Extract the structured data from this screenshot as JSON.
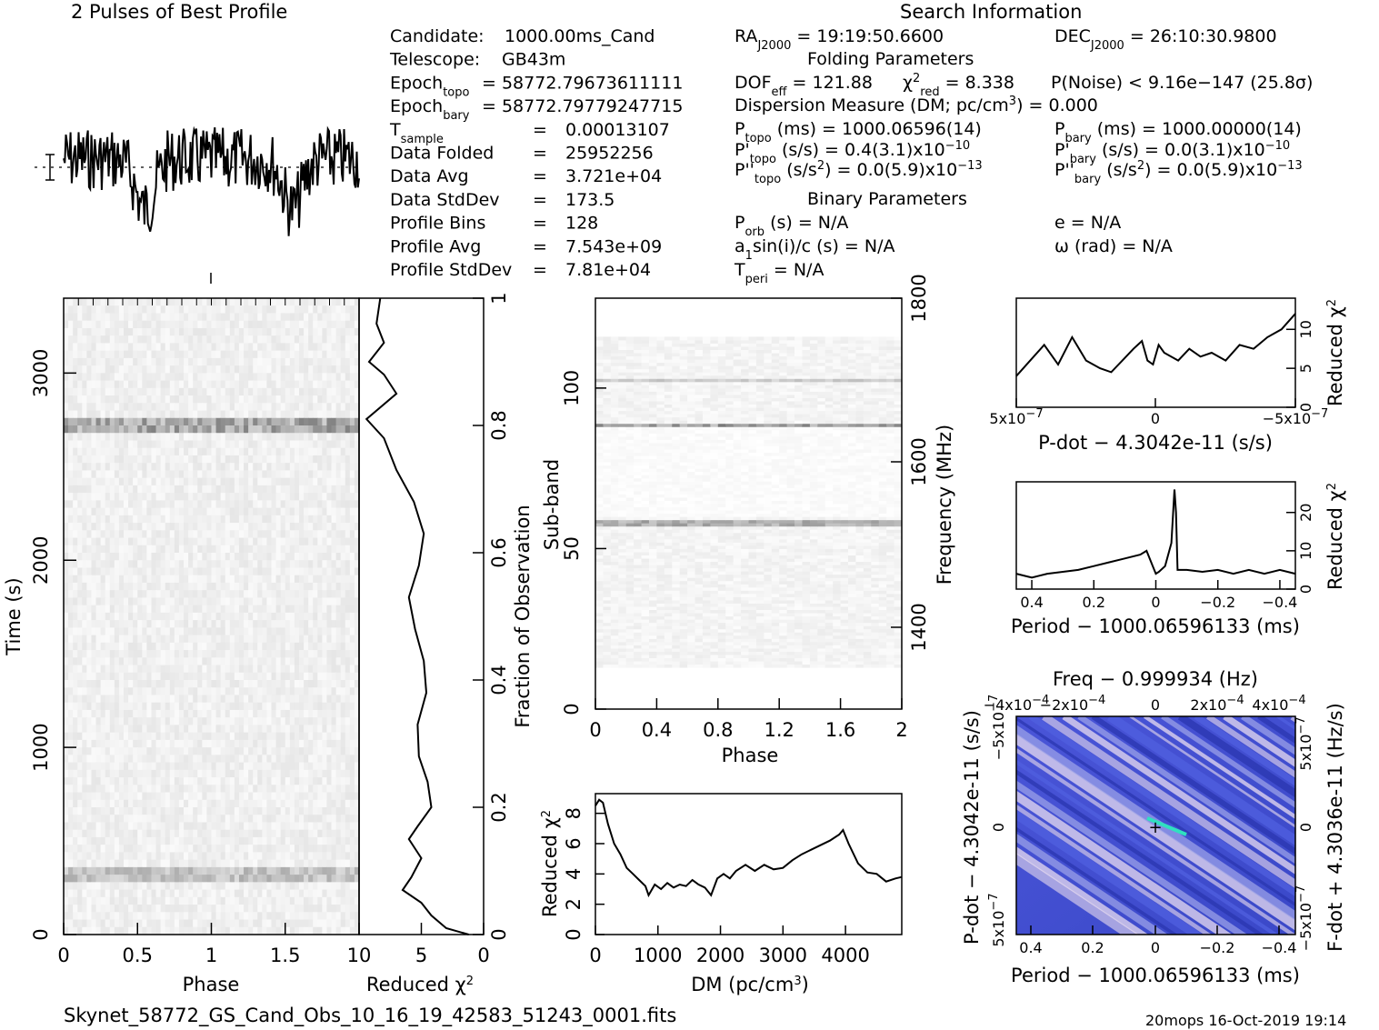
{
  "header": {
    "profile_title": "2 Pulses of Best Profile",
    "search_title": "Search Information",
    "folding_title": "Folding Parameters",
    "binary_title": "Binary Parameters"
  },
  "candidate_info": [
    {
      "label": "Candidate:",
      "value": "1000.00ms_Cand"
    },
    {
      "label": "Telescope:",
      "value": "GB43m"
    },
    {
      "label": "Epoch",
      "sub": "topo",
      "value": "= 58772.79673611111"
    },
    {
      "label": "Epoch",
      "sub": "bary",
      "value": "= 58772.79779247715"
    },
    {
      "label": "T",
      "sub": "sample",
      "value": "0.00013107"
    },
    {
      "label": "Data Folded",
      "value": "25952256"
    },
    {
      "label": "Data Avg",
      "value": "3.721e+04"
    },
    {
      "label": "Data StdDev",
      "value": "173.5"
    },
    {
      "label": "Profile Bins",
      "value": "128"
    },
    {
      "label": "Profile Avg",
      "value": "7.543e+09"
    },
    {
      "label": "Profile StdDev",
      "value": "7.81e+04"
    }
  ],
  "search_info": {
    "ra": "= 19:19:50.6600",
    "ra_label": "RA",
    "ra_sub": "J2000",
    "dec": "= 26:10:30.9800",
    "dec_label": "DEC",
    "dec_sub": "J2000",
    "dof_label": "DOF",
    "dof_sub": "eff",
    "dof": "= 121.88",
    "chi_label": "χ",
    "chi_sup": "2",
    "chi_sub": "red",
    "chi": "= 8.338",
    "pnoise": "P(Noise) < 9.16e−147   (25.8σ)",
    "dm_text": "Dispersion Measure (DM; pc/cm",
    "dm_sup": "3",
    "dm_value": ") = 0.000",
    "ptopo_label": "P",
    "ptopo_sub": "topo",
    "ptopo": "(ms) =  1000.06596(14)",
    "pbary_label": "P",
    "pbary_sub": "bary",
    "pbary": "(ms) =  1000.00000(14)",
    "pdtopo_label": "P'",
    "pdtopo_sub": "topo",
    "pdtopo": "(s/s) =  0.4(3.1)x10",
    "pdtopo_exp": "−10",
    "pdbary_label": "P'",
    "pdbary_sub": "bary",
    "pdbary": "(s/s) = 0.0(3.1)x10",
    "pdbary_exp": "−10",
    "pddtopo_label": "P''",
    "pddtopo_sub": "topo",
    "pddtopo": "(s/s",
    "pddtopo_sup": "2",
    "pddtopo_tail": ") = 0.0(5.9)x10",
    "pddtopo_exp": "−13",
    "pddbary_label": "P''",
    "pddbary_sub": "bary",
    "pddbary": "(s/s",
    "pddbary_sup": "2",
    "pddbary_tail": ") = 0.0(5.9)x10",
    "pddbary_exp": "−13",
    "porb_label": "P",
    "porb_sub": "orb",
    "porb": "(s) = N/A",
    "e": "e = N/A",
    "a1": "a",
    "a1_sub": "1",
    "a1_tail": "sin(i)/c (s) = N/A",
    "omega": "ω (rad) = N/A",
    "tperi_label": "T",
    "tperi_sub": "peri",
    "tperi": "= N/A"
  },
  "footer": {
    "filename": "Skynet_58772_GS_Cand_Obs_10_16_19_42583_51243_0001.fits",
    "stamp": "20mops 16-Oct-2019 19:14"
  },
  "chart_data": [
    {
      "type": "line",
      "id": "profile",
      "title": "2 Pulses of Best Profile",
      "xlim": [
        0,
        2
      ],
      "note": "two repeated pulse profiles, noisy"
    },
    {
      "type": "heatmap",
      "id": "time-phase",
      "xlabel": "Phase",
      "ylabel": "Time (s)",
      "xlim": [
        0,
        2
      ],
      "ylim": [
        0,
        3400
      ],
      "xticks": [
        "0",
        "0.5",
        "1",
        "1.5"
      ],
      "yticks": [
        "0",
        "1000",
        "2000",
        "3000"
      ],
      "bright_rows_time": [
        2740,
        350
      ]
    },
    {
      "type": "line",
      "id": "chi-vs-time",
      "xlabel": "Reduced χ",
      "xlabel_sup": "2",
      "ylabel": "Fraction of Observation",
      "xlim": [
        10,
        0
      ],
      "ylim": [
        0,
        1
      ],
      "xticks": [
        "10",
        "5",
        "0"
      ],
      "yticks": [
        "0",
        "0.2",
        "0.4",
        "0.6",
        "0.8",
        "1"
      ],
      "points": [
        [
          1.2,
          0
        ],
        [
          3,
          0.01
        ],
        [
          4.2,
          0.03
        ],
        [
          5,
          0.05
        ],
        [
          6.5,
          0.07
        ],
        [
          5.8,
          0.09
        ],
        [
          5,
          0.12
        ],
        [
          6,
          0.15
        ],
        [
          5.3,
          0.17
        ],
        [
          4.2,
          0.2
        ],
        [
          4.5,
          0.24
        ],
        [
          5.2,
          0.28
        ],
        [
          5.3,
          0.33
        ],
        [
          4.6,
          0.38
        ],
        [
          4.8,
          0.43
        ],
        [
          5.5,
          0.48
        ],
        [
          6,
          0.53
        ],
        [
          5.2,
          0.58
        ],
        [
          4.8,
          0.63
        ],
        [
          5.6,
          0.68
        ],
        [
          7,
          0.73
        ],
        [
          8,
          0.78
        ],
        [
          9.4,
          0.81
        ],
        [
          7,
          0.85
        ],
        [
          8,
          0.88
        ],
        [
          9.2,
          0.9
        ],
        [
          8,
          0.93
        ],
        [
          8.6,
          0.96
        ],
        [
          8.3,
          1
        ]
      ]
    },
    {
      "type": "heatmap",
      "id": "subband-phase",
      "xlabel": "Phase",
      "ylabel": "Sub-band",
      "y2label": "Frequency (MHz)",
      "xlim": [
        0,
        2
      ],
      "ylim": [
        0,
        128
      ],
      "xticks": [
        "0",
        "0.4",
        "0.8",
        "1.2",
        "1.6",
        "2"
      ],
      "yticks": [
        "0",
        "50",
        "100"
      ],
      "y2ticks": [
        "1400",
        "1600",
        "1800"
      ]
    },
    {
      "type": "line",
      "id": "chi-vs-dm",
      "xlabel": "DM (pc/cm",
      "xlabel_sup": "3",
      "xlabel_tail": ")",
      "ylabel": "Reduced χ",
      "ylabel_sup": "2",
      "xlim": [
        0,
        4900
      ],
      "ylim": [
        0,
        9.3
      ],
      "xticks": [
        "0",
        "1000",
        "2000",
        "3000",
        "4000"
      ],
      "yticks": [
        "0",
        "2",
        "4",
        "6",
        "8"
      ],
      "points": [
        [
          0,
          8.5
        ],
        [
          60,
          8.9
        ],
        [
          120,
          8.7
        ],
        [
          200,
          7.3
        ],
        [
          300,
          6
        ],
        [
          400,
          5.3
        ],
        [
          500,
          4.4
        ],
        [
          600,
          4
        ],
        [
          700,
          3.6
        ],
        [
          800,
          3.2
        ],
        [
          850,
          2.6
        ],
        [
          950,
          3.3
        ],
        [
          1050,
          3
        ],
        [
          1150,
          3.4
        ],
        [
          1250,
          3.1
        ],
        [
          1350,
          3.3
        ],
        [
          1450,
          3.2
        ],
        [
          1550,
          3.6
        ],
        [
          1650,
          3.3
        ],
        [
          1750,
          3.1
        ],
        [
          1850,
          2.6
        ],
        [
          1950,
          3.7
        ],
        [
          2050,
          4
        ],
        [
          2150,
          3.7
        ],
        [
          2250,
          4.2
        ],
        [
          2400,
          4.6
        ],
        [
          2550,
          4.2
        ],
        [
          2700,
          4.6
        ],
        [
          2850,
          4.3
        ],
        [
          3000,
          4.4
        ],
        [
          3150,
          4.9
        ],
        [
          3300,
          5.3
        ],
        [
          3450,
          5.6
        ],
        [
          3600,
          5.9
        ],
        [
          3750,
          6.2
        ],
        [
          3900,
          6.6
        ],
        [
          3960,
          6.9
        ],
        [
          4050,
          6
        ],
        [
          4200,
          4.7
        ],
        [
          4350,
          4.1
        ],
        [
          4500,
          4
        ],
        [
          4650,
          3.5
        ],
        [
          4800,
          3.7
        ],
        [
          4900,
          3.8
        ]
      ]
    },
    {
      "type": "line",
      "id": "chi-vs-pdot",
      "xlabel": "P-dot − 4.3042e-11 (s/s)",
      "ylabel": "Reduced χ",
      "ylabel_sup": "2",
      "xlim": [
        5e-07,
        -5e-07
      ],
      "ylim": [
        0,
        14
      ],
      "xticks": [
        "5x10",
        "0",
        "−5x10"
      ],
      "xtick_exp": "−7",
      "yticks": [
        "0",
        "5",
        "10"
      ],
      "points": [
        [
          5e-07,
          4
        ],
        [
          4.5e-07,
          6
        ],
        [
          4e-07,
          8
        ],
        [
          3.5e-07,
          5.5
        ],
        [
          3e-07,
          9
        ],
        [
          2.5e-07,
          6
        ],
        [
          2e-07,
          5
        ],
        [
          1.6e-07,
          4.5
        ],
        [
          1.2e-07,
          6
        ],
        [
          8e-08,
          7.5
        ],
        [
          5e-08,
          8.5
        ],
        [
          3e-08,
          6
        ],
        [
          1e-08,
          5.5
        ],
        [
          -1e-08,
          8
        ],
        [
          -3e-08,
          7
        ],
        [
          -8e-08,
          6
        ],
        [
          -1.2e-07,
          7.5
        ],
        [
          -1.6e-07,
          6.5
        ],
        [
          -2e-07,
          7
        ],
        [
          -2.5e-07,
          6
        ],
        [
          -3e-07,
          8
        ],
        [
          -3.5e-07,
          7.5
        ],
        [
          -4e-07,
          9
        ],
        [
          -4.5e-07,
          10
        ],
        [
          -5e-07,
          12
        ]
      ]
    },
    {
      "type": "line",
      "id": "chi-vs-period",
      "xlabel": "Period − 1000.06596133 (ms)",
      "ylabel": "Reduced χ",
      "ylabel_sup": "2",
      "xlim": [
        0.45,
        -0.45
      ],
      "ylim": [
        0,
        28
      ],
      "xticks": [
        "0.4",
        "0.2",
        "0",
        "−0.2",
        "−0.4"
      ],
      "yticks": [
        "0",
        "10",
        "20"
      ],
      "points": [
        [
          0.45,
          4
        ],
        [
          0.4,
          3
        ],
        [
          0.35,
          4
        ],
        [
          0.3,
          4.5
        ],
        [
          0.25,
          5
        ],
        [
          0.2,
          6
        ],
        [
          0.15,
          7
        ],
        [
          0.1,
          8
        ],
        [
          0.05,
          9
        ],
        [
          0.03,
          10
        ],
        [
          0.01,
          6
        ],
        [
          0,
          4
        ],
        [
          -0.01,
          4.5
        ],
        [
          -0.03,
          6
        ],
        [
          -0.05,
          12
        ],
        [
          -0.06,
          26
        ],
        [
          -0.065,
          20
        ],
        [
          -0.07,
          5
        ],
        [
          -0.1,
          5
        ],
        [
          -0.15,
          4.5
        ],
        [
          -0.2,
          5
        ],
        [
          -0.25,
          4
        ],
        [
          -0.3,
          5
        ],
        [
          -0.35,
          4
        ],
        [
          -0.4,
          5
        ],
        [
          -0.45,
          4
        ]
      ]
    },
    {
      "type": "heatmap",
      "id": "pdot-period",
      "title": "Freq − 0.999934 (Hz)",
      "xlabel": "Period − 1000.06596133 (ms)",
      "ylabel": "P-dot − 4.3042e-11 (s/s)",
      "y2label": "F-dot + 4.3036e-11 (Hz/s)",
      "xticks": [
        "0.4",
        "0.2",
        "0",
        "−0.2",
        "−0.4"
      ],
      "x2ticks": [
        "−4x10",
        "−2x10",
        "0",
        "2x10",
        "4x10"
      ],
      "x2tick_exp": "−4",
      "yticks": [
        "5x10",
        "0",
        "−5x10"
      ],
      "ytick_exp": "−7",
      "y2ticks": [
        "5x10",
        "0",
        "−5x10"
      ],
      "y2tick_exp": "−7"
    }
  ]
}
